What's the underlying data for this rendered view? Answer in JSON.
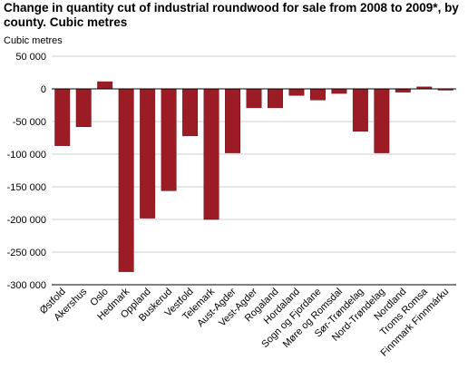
{
  "chart_data": {
    "type": "bar",
    "title": "Change in quantity cut of industrial roundwood for sale from 2008 to 2009*, by county. Cubic metres",
    "ylabel": "Cubic metres",
    "xlabel": "",
    "ylim": [
      -300000,
      50000
    ],
    "yticks": [
      50000,
      0,
      -50000,
      -100000,
      -150000,
      -200000,
      -250000,
      -300000
    ],
    "ytick_labels": [
      "50 000",
      "0",
      "-50 000",
      "-100 000",
      "-150 000",
      "-200 000",
      "-250 000",
      "-300 000"
    ],
    "grid": true,
    "legend": "none",
    "bar_color": "#9b1c24",
    "categories": [
      "Østfold",
      "Akershus",
      "Oslo",
      "Hedmark",
      "Oppland",
      "Buskerud",
      "Vestfold",
      "Telemark",
      "Aust-Agder",
      "Vest-Agder",
      "Rogaland",
      "Hordaland",
      "Sogn og Fjordane",
      "Møre og Romsdal",
      "Sør-Trøndelag",
      "Nord-Trøndelag",
      "Nordland",
      "Troms Romsa",
      "Finnmark Finnmárku"
    ],
    "values": [
      -87000,
      -58000,
      11000,
      -280000,
      -198000,
      -156000,
      -72000,
      -200000,
      -98000,
      -29000,
      -29000,
      -10000,
      -17000,
      -7000,
      -65000,
      -98000,
      -5000,
      3000,
      -2000
    ]
  }
}
